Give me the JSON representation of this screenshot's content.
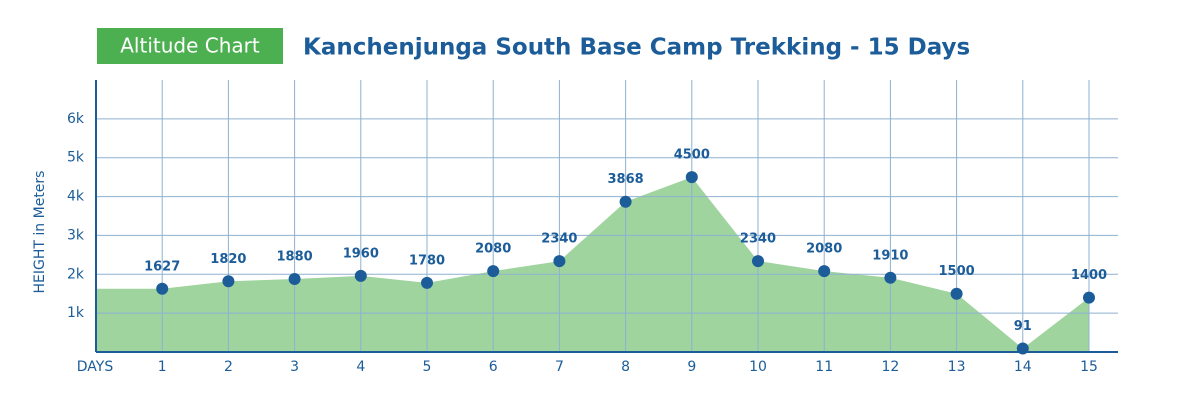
{
  "chart_data": {
    "type": "area",
    "badge": "Altitude Chart",
    "title": "Kanchenjunga South Base Camp Trekking - 15 Days",
    "y_label": "HEIGHT in Meters",
    "x_label": "DAYS",
    "categories": [
      "1",
      "2",
      "3",
      "4",
      "5",
      "6",
      "7",
      "8",
      "9",
      "10",
      "11",
      "12",
      "13",
      "14",
      "15"
    ],
    "values": [
      1627,
      1820,
      1880,
      1960,
      1780,
      2080,
      2340,
      3868,
      4500,
      2340,
      2080,
      1910,
      1500,
      91,
      1400
    ],
    "color": "#9fd49f",
    "marker_color": "#1c5d99",
    "ylim": [
      0,
      7000
    ],
    "yticks": [
      {
        "value": 1000,
        "label": "1k"
      },
      {
        "value": 2000,
        "label": "2k"
      },
      {
        "value": 3000,
        "label": "3k"
      },
      {
        "value": 4000,
        "label": "4k"
      },
      {
        "value": 5000,
        "label": "5k"
      },
      {
        "value": 6000,
        "label": "6k"
      }
    ],
    "grid": true
  }
}
